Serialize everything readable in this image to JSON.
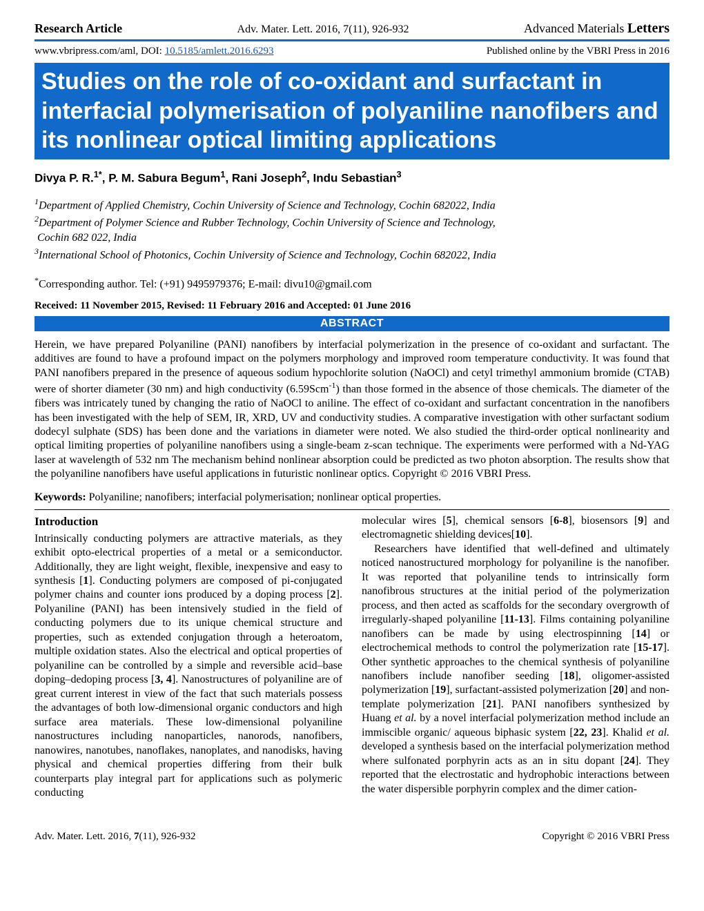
{
  "header": {
    "article_type": "Research Article",
    "citation": "Adv. Mater. Lett. 2016, 7(11), 926-932",
    "journal_prefix": "Advanced Materials ",
    "journal_suffix": "Letters"
  },
  "subheader": {
    "url_prefix": "www.vbripress.com/aml, DOI: ",
    "doi": "10.5185/amlett.2016.6293",
    "published": "Published online by the VBRI Press in 2016"
  },
  "title": "Studies on the role of co-oxidant and surfactant in interfacial polymerisation of polyaniline nanofibers and its nonlinear optical limiting applications",
  "authors_html": "Divya P. R.<sup>1*</sup>, P. M. Sabura Begum<sup>1</sup>, Rani Joseph<sup>2</sup>, Indu Sebastian<sup>3</sup>",
  "affiliations_html": "<sup>1</sup>Department of Applied Chemistry, Cochin University of Science and Technology, Cochin 682022, India<br><sup>2</sup>Department of Polymer Science and Rubber Technology, Cochin University of Science and Technology,<br>&nbsp;Cochin 682 022, India<br><sup>3</sup>International School of Photonics, Cochin University of Science and Technology, Cochin 682022, India",
  "corresponding_html": "<sup>*</sup>Corresponding author. Tel: (+91) 9495979376; E-mail: divu10@gmail.com",
  "dates": "Received: 11 November 2015,  Revised: 11 February 2016 and Accepted: 01 June 2016",
  "abstract_label": "ABSTRACT",
  "abstract_html": "Herein, we have prepared Polyaniline (PANI) nanofibers by interfacial polymerization in the presence of co-oxidant and surfactant. The additives are found to have a profound impact on the polymers morphology and improved room temperature conductivity. It was found that PANI nanofibers prepared in the presence of aqueous sodium hypochlorite solution (NaOCl) and cetyl trimethyl ammonium bromide (CTAB) were of shorter diameter (30 nm) and high conductivity (6.59Scm<sup>-1</sup>) than those formed in the absence of those chemicals. The diameter of the fibers was intricately tuned by changing the ratio of NaOCl to aniline. The effect of co-oxidant and surfactant concentration in the nanofibers has been investigated with the help of SEM, IR, XRD, UV and conductivity studies. A comparative investigation with other surfactant sodium dodecyl sulphate (SDS) has been done and the variations in diameter were noted. We also studied the third-order optical nonlinearity and optical limiting properties of polyaniline nanofibers using a single-beam z-scan technique. The experiments were performed with a Nd-YAG laser at wavelength of 532 nm The mechanism behind nonlinear absorption could be predicted as two photon absorption. The results show that the polyaniline nanofibers have useful applications in futuristic nonlinear optics. Copyright © 2016 VBRI Press.",
  "keywords_label": "Keywords:",
  "keywords_text": " Polyaniline; nanofibers; interfacial polymerisation; nonlinear optical properties.",
  "intro_label": "Introduction",
  "body_col1": "Intrinsically conducting polymers are attractive materials, as they exhibit opto-electrical properties of a metal or a semiconductor. Additionally, they are light weight, flexible, inexpensive and easy to synthesis [<b>1</b>]. Conducting polymers are composed of pi-conjugated polymer chains and counter ions produced by a doping process [<b>2</b>]. Polyaniline (PANI) has been intensively studied in the field of conducting polymers due to its unique chemical structure and properties, such as extended conjugation through a heteroatom, multiple oxidation states. Also the electrical and optical properties of polyaniline can be controlled by a simple and reversible acid–base doping–dedoping process [<b>3, 4</b>]. Nanostructures of polyaniline are of great current interest in view of the fact that such materials possess the advantages of both low-dimensional organic conductors and high surface area materials. These low-dimensional polyaniline nanostructures including nanoparticles, nanorods, nanofibers, nanowires, nanotubes, nanoflakes, nanoplates, and nanodisks, having physical and chemical properties differing from their bulk counterparts play integral part for applications such as polymeric conducting",
  "body_col2": "molecular wires [<b>5</b>], chemical sensors [<b>6-8</b>], biosensors [<b>9</b>] and electromagnetic shielding devices[<b>10</b>].<br><span style='display:inline-block;width:18px'></span>Researchers have identified that well-defined and ultimately noticed nanostructured morphology for polyaniline is the nanofiber. It was reported that polyaniline tends to intrinsically form nanofibrous structures at the initial period of the polymerization process, and then acted as scaffolds for the secondary overgrowth of irregularly-shaped polyaniline [<b>11-13</b>]. Films containing polyaniline nanofibers can be made by using electrospinning [<b>14</b>] or electrochemical methods to control the polymerization rate [<b>15-17</b>]. Other synthetic approaches to the chemical synthesis of polyaniline nanofibers include nanofiber seeding [<b>18</b>], oligomer-assisted polymerization [<b>19</b>], surfactant-assisted polymerization [<b>20</b>] and non-template polymerization [<b>21</b>]. PANI nanofibers synthesized by Huang <i>et al.</i> by a novel interfacial polymerization method include an immiscible organic/ aqueous biphasic system [<b>22, 23</b>]. Khalid <i>et al.</i> developed a synthesis based on the interfacial polymerization method where sulfonated porphyrin acts as an in situ dopant [<b>24</b>]. They reported that the electrostatic and hydrophobic interactions between the water dispersible porphyrin complex and the dimer cation-",
  "footer": {
    "left_html": "Adv. Mater. Lett. 2016, <b>7</b>(11), 926-932",
    "right": "Copyright © 2016 VBRI Press"
  },
  "colors": {
    "blue": "#1169c9",
    "link": "#1155cc"
  }
}
